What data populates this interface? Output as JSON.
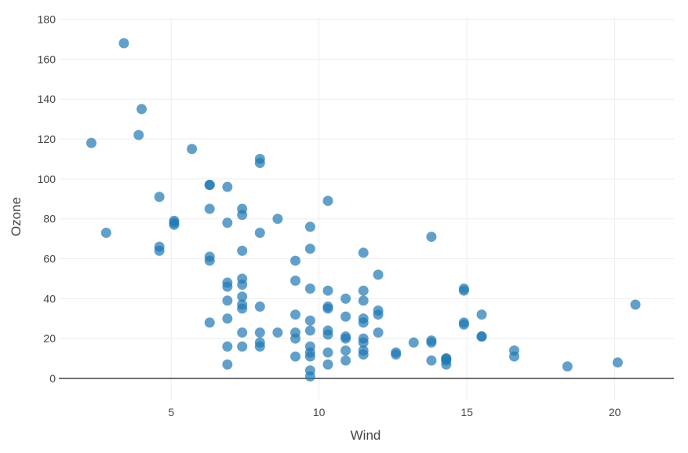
{
  "chart_data": {
    "type": "scatter",
    "title": "",
    "xlabel": "Wind",
    "ylabel": "Ozone",
    "xlim": [
      1.2,
      22.0
    ],
    "ylim": [
      -11,
      181
    ],
    "x_ticks": [
      5,
      10,
      15,
      20
    ],
    "y_ticks": [
      0,
      20,
      40,
      60,
      80,
      100,
      120,
      140,
      160,
      180
    ],
    "grid": true,
    "legend": "none",
    "marker_color": "#1f77b4",
    "series": [
      {
        "x": [
          3.4,
          4.0,
          3.9,
          2.3,
          5.7,
          8.0,
          8.0,
          4.6,
          6.3,
          6.9,
          6.3,
          6.3,
          7.4,
          7.4,
          5.1,
          5.1,
          5.1,
          8.6,
          6.9,
          10.3,
          2.8,
          8.0,
          9.7,
          4.6,
          4.6,
          9.7,
          7.4,
          6.3,
          6.3,
          9.2,
          11.5,
          13.8,
          12.0,
          7.4,
          6.9,
          9.2,
          6.9,
          6.9,
          9.7,
          10.3,
          11.5,
          14.9,
          14.9,
          10.9,
          7.4,
          7.4,
          7.4,
          7.4,
          8.0,
          10.3,
          10.3,
          11.5,
          11.5,
          12.0,
          12.0,
          9.2,
          9.7,
          15.5,
          20.7,
          10.9,
          11.5,
          6.3,
          6.9,
          9.2,
          11.5,
          14.9,
          14.9,
          7.4,
          8.0,
          8.6,
          9.2,
          9.7,
          10.3,
          10.3,
          10.9,
          10.9,
          11.5,
          12.0,
          13.2,
          13.8,
          13.8,
          15.5,
          15.5,
          8.0,
          8.0,
          6.9,
          7.4,
          9.7,
          9.2,
          9.7,
          10.3,
          10.9,
          11.5,
          11.5,
          12.6,
          12.6,
          13.8,
          14.3,
          14.3,
          14.3,
          16.6,
          16.6,
          18.4,
          20.1,
          6.9,
          9.7,
          10.3,
          10.9,
          14.3,
          9.7,
          9.7
        ],
        "y": [
          168,
          135,
          122,
          118,
          115,
          110,
          108,
          91,
          97,
          96,
          97,
          85,
          85,
          82,
          79,
          78,
          77,
          80,
          78,
          89,
          73,
          73,
          76,
          66,
          64,
          65,
          64,
          61,
          59,
          59,
          63,
          71,
          52,
          50,
          48,
          49,
          46,
          39,
          45,
          44,
          44,
          45,
          44,
          40,
          47,
          41,
          37,
          35,
          36,
          36,
          35,
          39,
          30,
          34,
          32,
          32,
          29,
          32,
          37,
          31,
          28,
          28,
          30,
          23,
          20,
          28,
          27,
          23,
          23,
          23,
          20,
          24,
          24,
          22,
          21,
          20,
          18,
          23,
          18,
          19,
          18,
          21,
          21,
          18,
          16,
          16,
          16,
          16,
          11,
          11,
          13,
          14,
          14,
          12,
          13,
          12,
          9,
          10,
          9,
          7,
          14,
          11,
          6,
          8,
          7,
          4,
          7,
          9,
          10,
          1,
          13
        ]
      }
    ]
  }
}
